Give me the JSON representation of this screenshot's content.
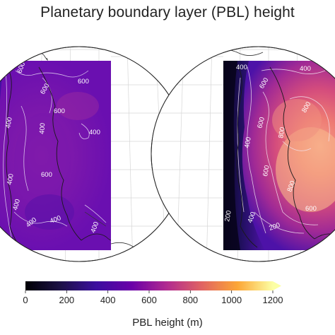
{
  "title": "Planetary  boundary layer (PBL) height",
  "colorbar": {
    "label": "PBL height (m)",
    "ticks": [
      "0",
      "200",
      "400",
      "600",
      "800",
      "1000",
      "1200"
    ],
    "min": 0,
    "max": 1200,
    "extend": "max",
    "colormap": [
      "#000004",
      "#1d1147",
      "#3b0f9f",
      "#6a00a8",
      "#b12a90",
      "#e16462",
      "#fca636",
      "#fcffa4"
    ]
  },
  "panels": [
    {
      "name": "left",
      "contour_labels": [
        "600",
        "600",
        "600",
        "400",
        "400",
        "400",
        "600",
        "400",
        "400",
        "600",
        "400",
        "400",
        "400"
      ]
    },
    {
      "name": "right",
      "contour_labels": [
        "400",
        "400",
        "600",
        "800",
        "600",
        "800",
        "400",
        "600",
        "800",
        "600",
        "200",
        "400",
        "200"
      ]
    }
  ]
}
